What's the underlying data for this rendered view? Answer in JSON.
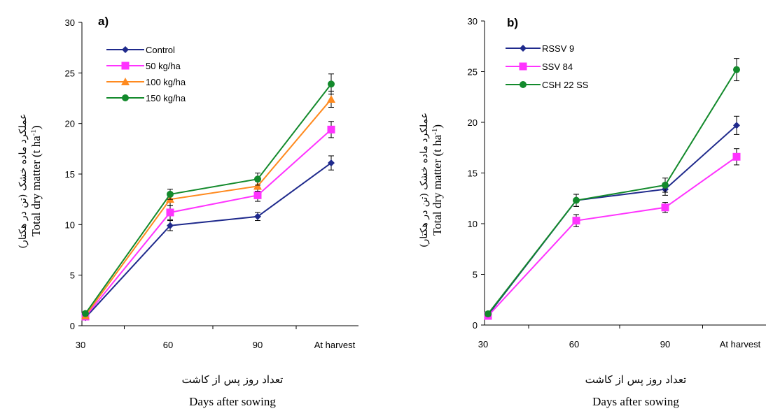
{
  "chart_data": [
    {
      "type": "line",
      "panel_label": "a)",
      "categories": [
        "30",
        "60",
        "90",
        "At harvest"
      ],
      "yticks": [
        "0",
        "5",
        "10",
        "15",
        "20",
        "25",
        "30"
      ],
      "ylim": [
        0,
        30
      ],
      "xlabel_fa": "تعداد روز پس از کاشت",
      "xlabel_en": "Days after sowing",
      "ylabel_fa": "عملکرد ماده خشک (تن در هکتار)",
      "ylabel_en": "Total dry matter (t ha",
      "ylabel_sup": "-1",
      "ylabel_close": ")",
      "legend_position": "top-left",
      "series": [
        {
          "name": "Control",
          "color": "#1f2a8c",
          "marker": "diamond",
          "values": [
            0.8,
            9.9,
            10.8,
            16.1
          ],
          "errors": [
            0.2,
            0.5,
            0.4,
            0.7
          ]
        },
        {
          "name": "50 kg/ha",
          "color": "#ff33ff",
          "marker": "square",
          "values": [
            0.9,
            11.2,
            12.9,
            19.4
          ],
          "errors": [
            0.2,
            0.7,
            0.6,
            0.8
          ]
        },
        {
          "name": "100 kg/ha",
          "color": "#ff8a1f",
          "marker": "triangle",
          "values": [
            1.0,
            12.5,
            13.8,
            22.4
          ],
          "errors": [
            0.2,
            0.6,
            0.5,
            0.8
          ]
        },
        {
          "name": "150 kg/ha",
          "color": "#138a2c",
          "marker": "circle",
          "values": [
            1.2,
            13.0,
            14.5,
            23.9
          ],
          "errors": [
            0.2,
            0.5,
            0.6,
            1.0
          ]
        }
      ]
    },
    {
      "type": "line",
      "panel_label": "b)",
      "categories": [
        "30",
        "60",
        "90",
        "At harvest"
      ],
      "yticks": [
        "0",
        "5",
        "10",
        "15",
        "20",
        "25",
        "30"
      ],
      "ylim": [
        0,
        30
      ],
      "xlabel_fa": "تعداد روز پس از کاشت",
      "xlabel_en": "Days after sowing",
      "ylabel_fa": "عملکرد ماده خشک (تن در هکتار)",
      "ylabel_en": "Total dry matter (t ha",
      "ylabel_sup": "-1",
      "ylabel_close": ")",
      "legend_position": "top-left",
      "series": [
        {
          "name": "RSSV 9",
          "color": "#1f2a8c",
          "marker": "diamond",
          "values": [
            1.0,
            12.3,
            13.4,
            19.7
          ],
          "errors": [
            0.2,
            0.6,
            0.6,
            0.9
          ]
        },
        {
          "name": "SSV 84",
          "color": "#ff33ff",
          "marker": "square",
          "values": [
            0.9,
            10.3,
            11.6,
            16.6
          ],
          "errors": [
            0.2,
            0.6,
            0.5,
            0.8
          ]
        },
        {
          "name": "CSH 22 SS",
          "color": "#138a2c",
          "marker": "circle",
          "values": [
            1.1,
            12.3,
            13.8,
            25.2
          ],
          "errors": [
            0.2,
            0.6,
            0.7,
            1.1
          ]
        }
      ]
    }
  ]
}
